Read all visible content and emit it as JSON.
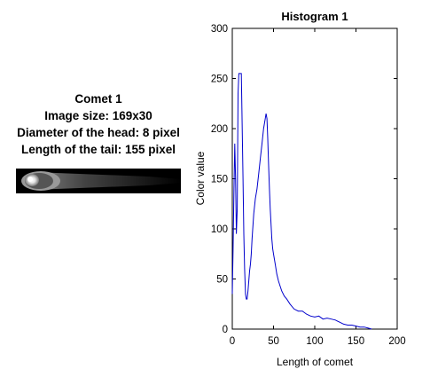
{
  "comet_info": {
    "name": "Comet 1",
    "image_size": "Image size: 169x30",
    "head_diameter": "Diameter of the head: 8 pixel",
    "tail_length": "Length of the tail: 155 pixel"
  },
  "comet_image": {
    "description_icon": "comet-thumbnail"
  },
  "chart_data": {
    "type": "line",
    "title": "Histogram 1",
    "xlabel": "Length of comet",
    "ylabel": "Color value",
    "xlim": [
      0,
      200
    ],
    "ylim": [
      0,
      300
    ],
    "xticks": [
      "0",
      "50",
      "100",
      "150",
      "200"
    ],
    "yticks": [
      "0",
      "50",
      "100",
      "150",
      "200",
      "250",
      "300"
    ],
    "line_color": "#0000cc",
    "grid": false,
    "series": [
      {
        "x": [
          0,
          1,
          2,
          3,
          4,
          5,
          6,
          7,
          8,
          9,
          10,
          11,
          12,
          13,
          14,
          15,
          16,
          17,
          18,
          19,
          20,
          21,
          22,
          23,
          24,
          26,
          28,
          30,
          32,
          34,
          36,
          38,
          40,
          41,
          42,
          43,
          44,
          45,
          46,
          47,
          48,
          49,
          50,
          52,
          54,
          56,
          58,
          60,
          63,
          66,
          70,
          75,
          80,
          85,
          90,
          95,
          100,
          105,
          110,
          115,
          120,
          125,
          130,
          135,
          140,
          145,
          150,
          155,
          160,
          165,
          169
        ],
        "y": [
          35,
          80,
          140,
          185,
          150,
          95,
          120,
          235,
          255,
          255,
          255,
          255,
          200,
          150,
          95,
          60,
          35,
          30,
          30,
          38,
          48,
          58,
          65,
          75,
          90,
          115,
          130,
          140,
          155,
          170,
          185,
          200,
          210,
          215,
          210,
          190,
          165,
          140,
          120,
          105,
          90,
          80,
          75,
          65,
          55,
          48,
          43,
          38,
          33,
          30,
          25,
          20,
          18,
          18,
          15,
          13,
          12,
          13,
          10,
          11,
          10,
          9,
          7,
          5,
          4,
          4,
          3,
          2,
          2,
          1,
          0
        ]
      }
    ]
  }
}
